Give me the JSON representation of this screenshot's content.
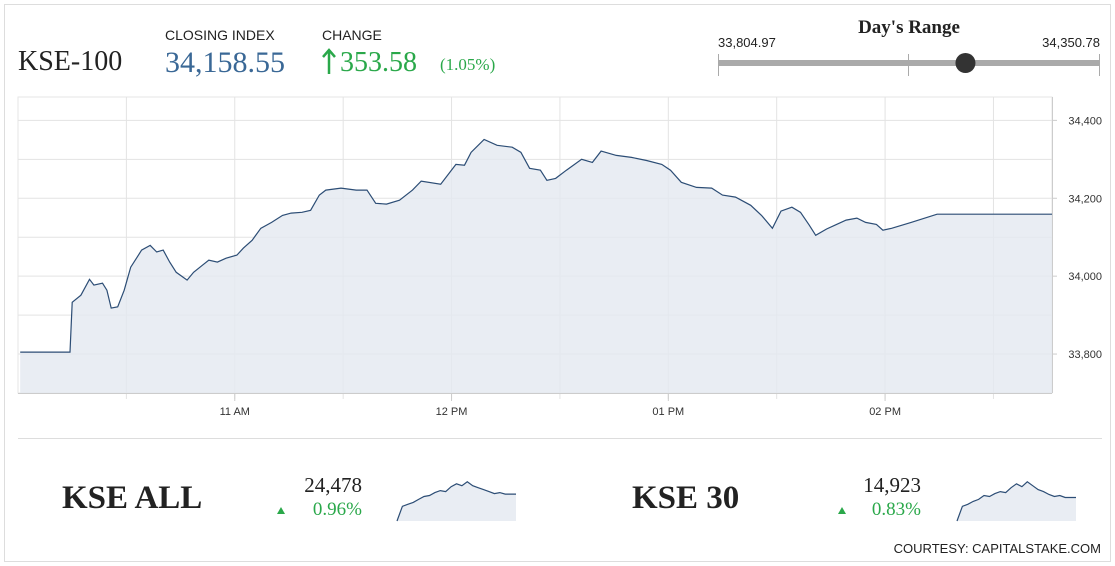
{
  "header": {
    "name": "KSE-100",
    "closing_label": "CLOSING INDEX",
    "closing_value": "34,158.55",
    "change_label": "CHANGE",
    "change_value": "353.58",
    "change_percent": "(1.05%)"
  },
  "day_range": {
    "title": "Day's Range",
    "low": "33,804.97",
    "high": "34,350.78"
  },
  "chart_data": [
    {
      "type": "line",
      "color": "#2c4d75",
      "fill_color": "#e3e9f0",
      "x": [
        10.01,
        10.24,
        10.25,
        10.29,
        10.33,
        10.35,
        10.39,
        10.41,
        10.43,
        10.46,
        10.49,
        10.52,
        10.55,
        10.57,
        10.61,
        10.64,
        10.67,
        10.7,
        10.73,
        10.78,
        10.81,
        10.85,
        10.88,
        10.92,
        10.96,
        11.01,
        11.04,
        11.08,
        11.12,
        11.17,
        11.22,
        11.26,
        11.31,
        11.35,
        11.39,
        11.42,
        11.49,
        11.56,
        11.61,
        11.65,
        11.7,
        11.76,
        11.82,
        11.86,
        11.95,
        12.02,
        12.06,
        12.09,
        12.15,
        12.21,
        12.28,
        12.32,
        12.36,
        12.41,
        12.44,
        12.48,
        12.53,
        12.6,
        12.65,
        12.69,
        12.76,
        12.83,
        12.9,
        12.97,
        13.01,
        13.06,
        13.13,
        13.2,
        13.25,
        13.31,
        13.38,
        13.43,
        13.48,
        13.52,
        13.57,
        13.61,
        13.65,
        13.68,
        13.73,
        13.77,
        13.82,
        13.87,
        13.91,
        13.96,
        13.99,
        14.03,
        14.12,
        14.24,
        14.77
      ],
      "values": [
        33805,
        33805,
        33933,
        33951,
        33992,
        33977,
        33982,
        33964,
        33918,
        33921,
        33964,
        34023,
        34049,
        34067,
        34079,
        34062,
        34067,
        34036,
        34010,
        33990,
        34010,
        34028,
        34041,
        34036,
        34046,
        34054,
        34072,
        34092,
        34123,
        34138,
        34156,
        34162,
        34164,
        34169,
        34208,
        34221,
        34226,
        34221,
        34221,
        34187,
        34185,
        34195,
        34221,
        34244,
        34236,
        34287,
        34285,
        34318,
        34351,
        34336,
        34331,
        34318,
        34277,
        34272,
        34246,
        34251,
        34272,
        34300,
        34292,
        34321,
        34310,
        34305,
        34297,
        34287,
        34272,
        34241,
        34228,
        34226,
        34208,
        34203,
        34182,
        34156,
        34123,
        34167,
        34177,
        34164,
        34131,
        34105,
        34121,
        34131,
        34144,
        34149,
        34138,
        34133,
        34118,
        34123,
        34138,
        34159,
        34159
      ],
      "xlim": [
        10,
        14.77
      ],
      "xticks": [
        {
          "value": 11,
          "label": "11 AM"
        },
        {
          "value": 12,
          "label": "12 PM"
        },
        {
          "value": 13,
          "label": "01 PM"
        },
        {
          "value": 14,
          "label": "02 PM"
        }
      ],
      "xgrid": [
        10.5,
        11,
        11.5,
        12,
        12.5,
        13,
        13.5,
        14,
        14.5
      ],
      "ylim": [
        33700,
        34460
      ],
      "yticks": [
        {
          "value": 33800,
          "label": "33,800"
        },
        {
          "value": 34000,
          "label": "34,000"
        },
        {
          "value": 34200,
          "label": "34,200"
        },
        {
          "value": 34400,
          "label": "34,400"
        }
      ],
      "ygrid": [
        33800,
        33900,
        34000,
        34100,
        34200,
        34300,
        34400
      ]
    },
    {
      "type": "line",
      "title": "KSE ALL",
      "value": "24,478",
      "change": "0.96%",
      "color": "#2c4d75",
      "fill_color": "#e3e9f0",
      "values": [
        0,
        30,
        34,
        38,
        44,
        50,
        52,
        58,
        62,
        60,
        70,
        76,
        72,
        80,
        72,
        68,
        64,
        60,
        56,
        58,
        55,
        55,
        55
      ],
      "ylim": [
        0,
        100
      ]
    },
    {
      "type": "line",
      "title": "KSE 30",
      "value": "14,923",
      "change": "0.83%",
      "color": "#2c4d75",
      "fill_color": "#e3e9f0",
      "values": [
        0,
        30,
        34,
        40,
        44,
        52,
        50,
        56,
        60,
        58,
        68,
        76,
        70,
        80,
        72,
        64,
        60,
        54,
        50,
        52,
        48,
        48,
        48
      ],
      "ylim": [
        0,
        100
      ]
    }
  ],
  "footer": "COURTESY: CAPITALSTAKE.COM"
}
